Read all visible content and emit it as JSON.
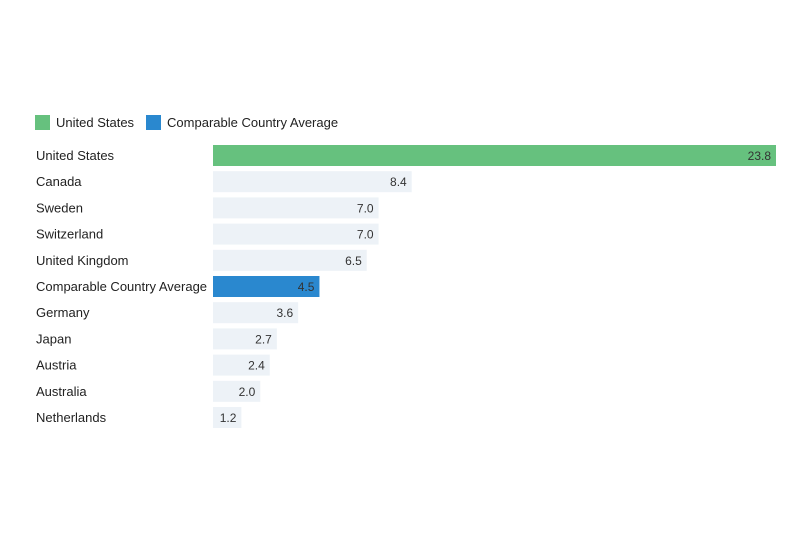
{
  "colors": {
    "us": "#66c17e",
    "average": "#2a88cf",
    "other": "#edf2f7"
  },
  "legend": [
    {
      "label": "United States",
      "color": "#66c17e"
    },
    {
      "label": "Comparable Country Average",
      "color": "#2a88cf"
    }
  ],
  "chart_data": {
    "type": "bar",
    "orientation": "horizontal",
    "categories": [
      "United States",
      "Canada",
      "Sweden",
      "Switzerland",
      "United Kingdom",
      "Comparable Country Average",
      "Germany",
      "Japan",
      "Austria",
      "Australia",
      "Netherlands"
    ],
    "values": [
      23.8,
      8.4,
      7.0,
      7.0,
      6.5,
      4.5,
      3.6,
      2.7,
      2.4,
      2.0,
      1.2
    ],
    "value_labels": [
      "23.8",
      "8.4",
      "7.0",
      "7.0",
      "6.5",
      "4.5",
      "3.6",
      "2.7",
      "2.4",
      "2.0",
      "1.2"
    ],
    "highlight": {
      "United States": "us",
      "Comparable Country Average": "average"
    },
    "xlim": [
      0,
      23.8
    ],
    "grid": false,
    "legend_position": "top-left",
    "title": "",
    "xlabel": "",
    "ylabel": ""
  }
}
